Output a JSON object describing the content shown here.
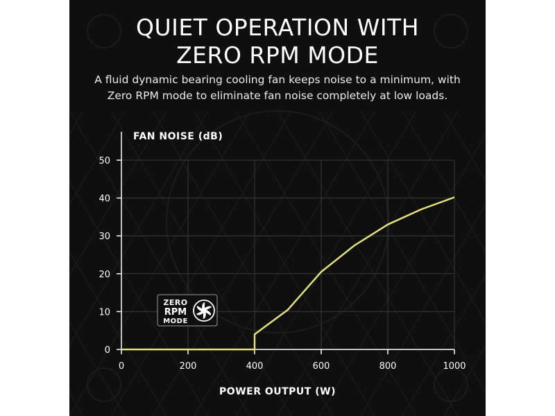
{
  "title_lines": [
    "QUIET OPERATION WITH",
    "ZERO RPM MODE"
  ],
  "subtitle_lines": [
    "A fluid dynamic bearing cooling fan keeps noise to a minimum, with",
    "Zero RPM mode to eliminate fan noise completely at low loads."
  ],
  "badge": {
    "line1": "ZERO",
    "line2": "RPM",
    "line3": "MODE",
    "icon": "fan-icon"
  },
  "colors": {
    "background": "#0f0f0f",
    "line": "#e8e07a",
    "grid": "#3a3a3a",
    "text": "#ffffff"
  },
  "chart_data": {
    "type": "line",
    "ylabel": "FAN NOISE (dB)",
    "xlabel": "POWER OUTPUT (W)",
    "xlim": [
      0,
      1000
    ],
    "ylim": [
      0,
      50
    ],
    "xticks": [
      0,
      200,
      400,
      600,
      800,
      1000
    ],
    "yticks": [
      0,
      10,
      20,
      30,
      40,
      50
    ],
    "grid": true,
    "series": [
      {
        "x": [
          0,
          400,
          400,
          500,
          600,
          700,
          800,
          900,
          1000
        ],
        "y": [
          0,
          0,
          4,
          10.5,
          20.5,
          27.5,
          33,
          37,
          40.2
        ]
      }
    ]
  }
}
